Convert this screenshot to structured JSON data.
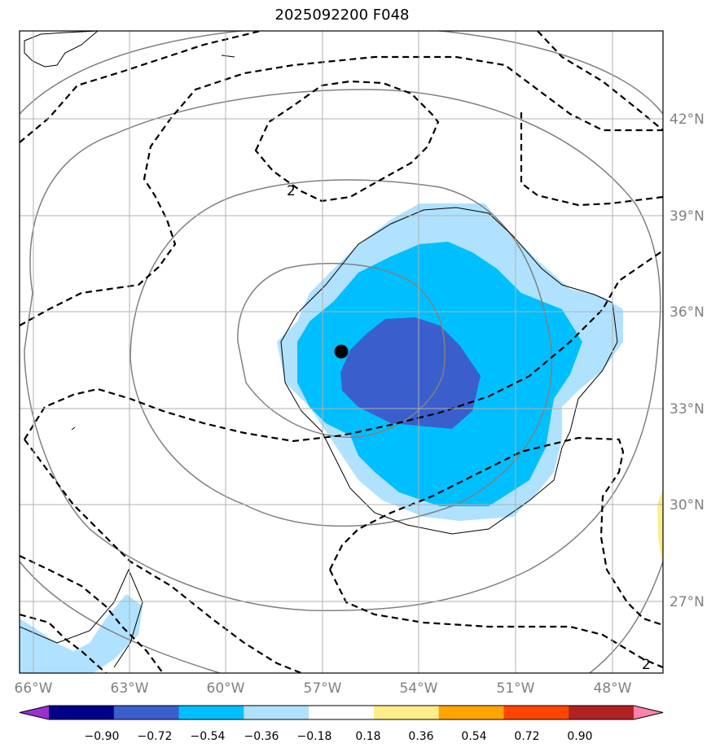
{
  "title": "2025092200 F048",
  "map": {
    "lon_range": [
      -66,
      -47
    ],
    "lat_range": [
      25,
      45
    ],
    "lon_labels": [
      "66°W",
      "63°W",
      "60°W",
      "57°W",
      "54°W",
      "51°W",
      "48°W"
    ],
    "lat_labels": [
      "42°N",
      "39°N",
      "36°N",
      "33°N",
      "30°N",
      "27°N"
    ],
    "contour_labels": [
      "2",
      "2"
    ],
    "center_marker": {
      "lon": -56.6,
      "lat": 34.8
    }
  },
  "colorbar": {
    "ticks": [
      "−0.90",
      "−0.72",
      "−0.54",
      "−0.36",
      "−0.18",
      "0.18",
      "0.36",
      "0.54",
      "0.72",
      "0.90"
    ],
    "colors": [
      "#9932CC",
      "#00008B",
      "#3A5FCD",
      "#00BFFF",
      "#B0E2FF",
      "#FFFFFF",
      "#FFEC8B",
      "#FFA500",
      "#FF4500",
      "#B22222",
      "#FF82AB"
    ]
  }
}
